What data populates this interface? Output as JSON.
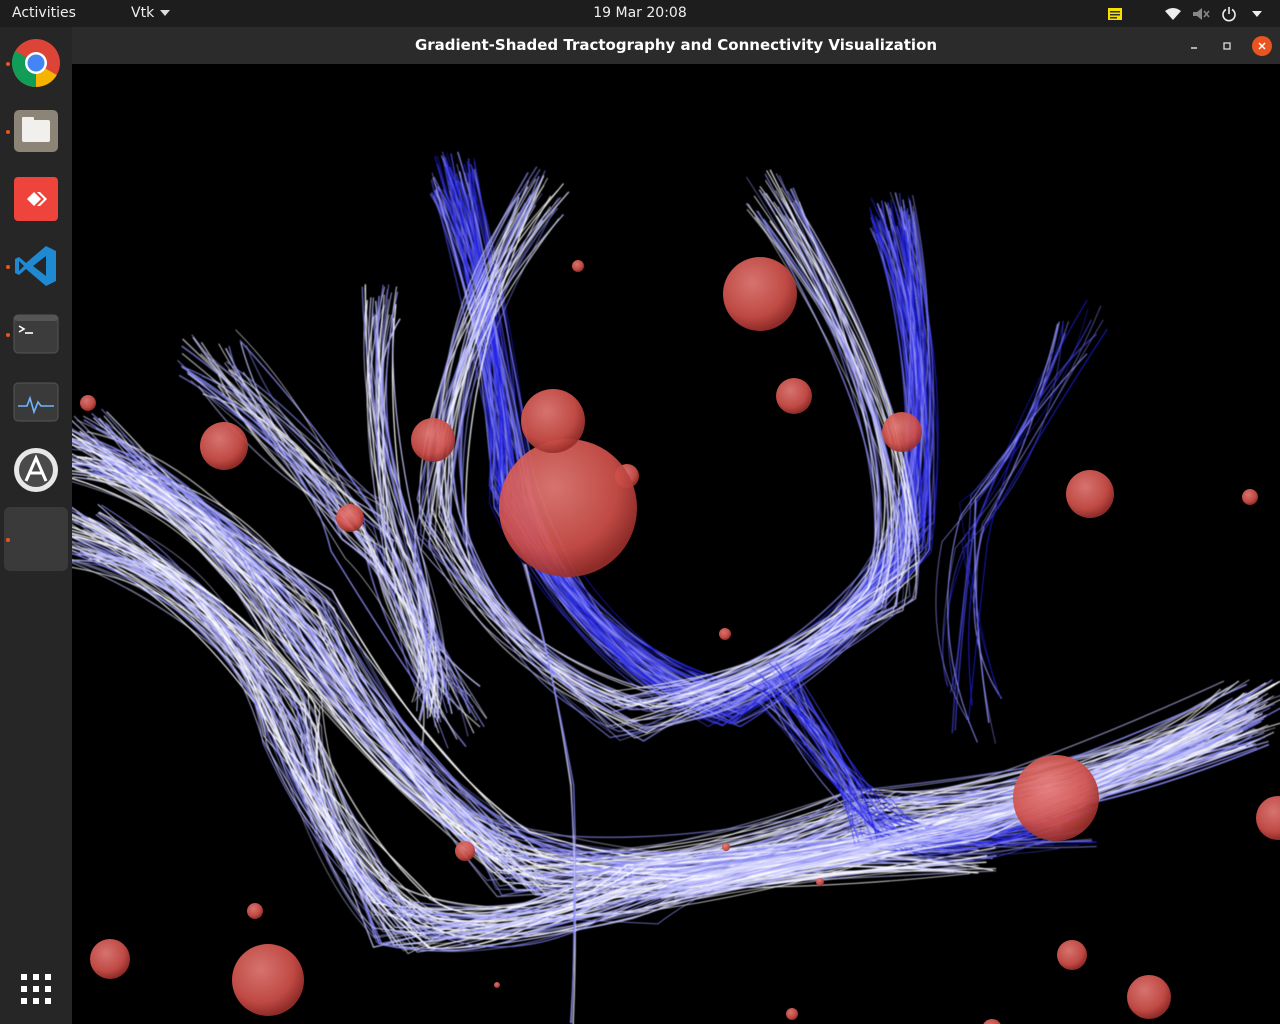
{
  "topbar": {
    "activities": "Activities",
    "app_menu": "Vtk",
    "clock": "19 Mar  20:08"
  },
  "dock": {
    "items": [
      {
        "name": "chrome",
        "running": true
      },
      {
        "name": "files",
        "running": true
      },
      {
        "name": "anydesk",
        "running": false
      },
      {
        "name": "vscode",
        "running": true
      },
      {
        "name": "terminal",
        "running": true
      },
      {
        "name": "system-monitor",
        "running": false
      },
      {
        "name": "software-updater",
        "running": false
      },
      {
        "name": "vtk-window",
        "running": true
      }
    ],
    "accent": "#e95420"
  },
  "window": {
    "title": "Gradient-Shaded Tractography and Connectivity Visualization"
  },
  "scene": {
    "background": "#000000",
    "fiber_colors": [
      "#2020e0",
      "#4a4af0",
      "#8a8af5",
      "#c8c8ff",
      "#ffffff"
    ],
    "node_color": "#d9534f"
  }
}
